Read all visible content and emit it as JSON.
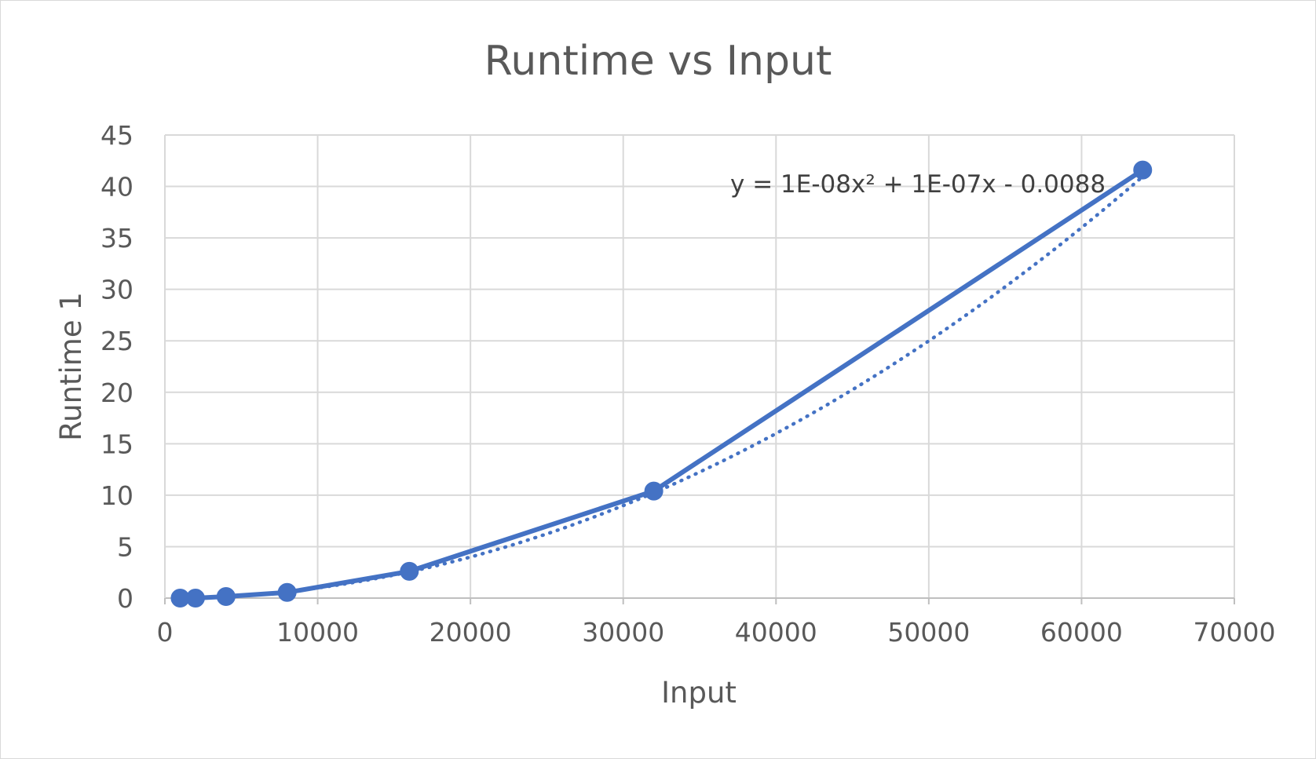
{
  "chart_data": {
    "type": "scatter",
    "title": "Runtime vs Input",
    "xlabel": "Input",
    "ylabel": "Runtime 1",
    "xlim": [
      0,
      70000
    ],
    "ylim": [
      0,
      45
    ],
    "xticks": [
      0,
      10000,
      20000,
      30000,
      40000,
      50000,
      60000,
      70000
    ],
    "yticks": [
      0,
      5,
      10,
      15,
      20,
      25,
      30,
      35,
      40,
      45
    ],
    "grid": true,
    "legend": "none",
    "series": [
      {
        "x": [
          1000,
          2000,
          4000,
          8000,
          16000,
          32000,
          64000
        ],
        "y": [
          0.0,
          0.0,
          0.15,
          0.55,
          2.6,
          10.4,
          41.6
        ],
        "color": "#4472c4",
        "line": "solid",
        "markers": true
      }
    ],
    "trendline": {
      "type": "polynomial-2",
      "a": 1e-08,
      "b": 1e-07,
      "c": -0.0088,
      "color": "#4472c4",
      "line": "dotted",
      "x_range": [
        1000,
        64000
      ],
      "equation_label": "y = 1E-08x² + 1E-07x - 0.0088"
    }
  }
}
